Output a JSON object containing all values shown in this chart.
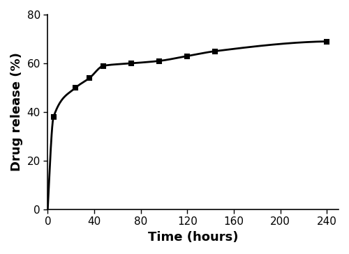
{
  "x": [
    0,
    5,
    24,
    36,
    48,
    72,
    96,
    120,
    144,
    240
  ],
  "y": [
    0,
    38,
    50,
    54,
    59,
    60,
    61,
    63,
    65,
    69
  ],
  "xlabel": "Time (hours)",
  "ylabel": "Drug release (%)",
  "xlim": [
    0,
    250
  ],
  "ylim": [
    0,
    80
  ],
  "xticks": [
    0,
    40,
    80,
    120,
    160,
    200,
    240
  ],
  "yticks": [
    0,
    20,
    40,
    60,
    80
  ],
  "line_color": "#000000",
  "line_width": 2.0,
  "marker": "s",
  "marker_size": 5,
  "marker_color": "#000000",
  "xlabel_fontsize": 13,
  "ylabel_fontsize": 13,
  "tick_fontsize": 11,
  "xlabel_fontweight": "bold",
  "ylabel_fontweight": "bold",
  "background_color": "#ffffff"
}
